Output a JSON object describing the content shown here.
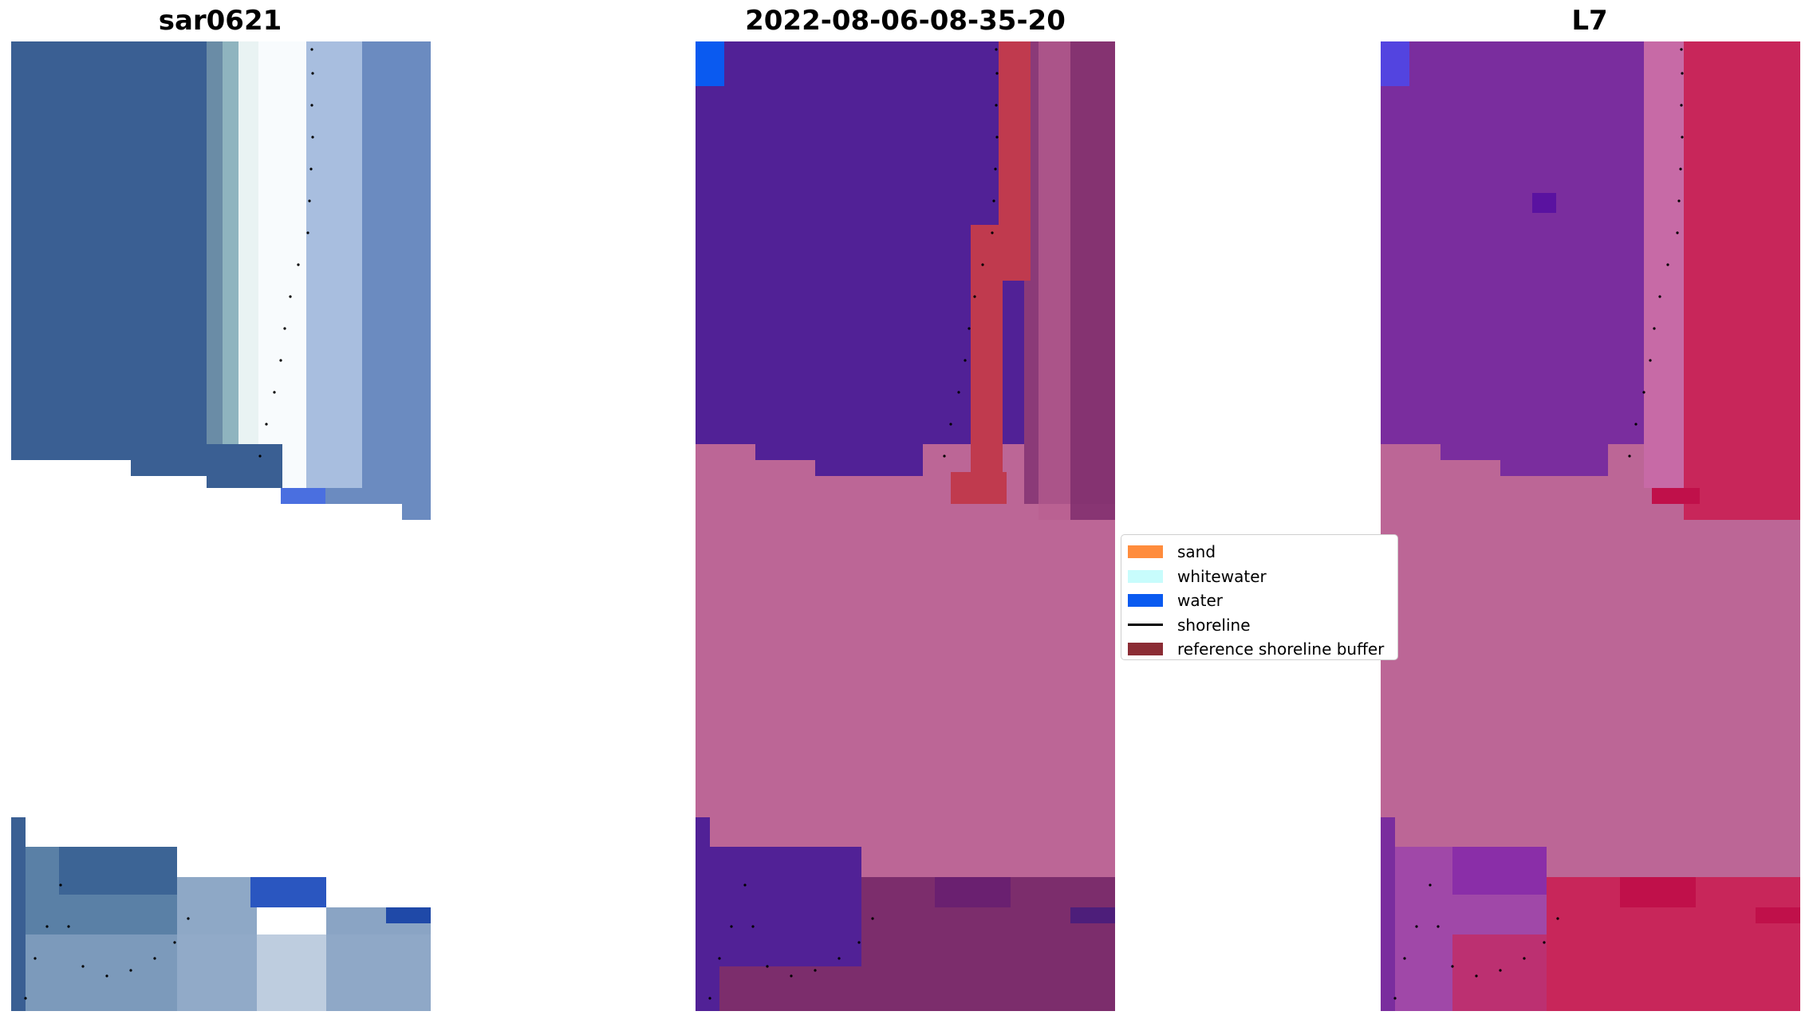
{
  "titles": {
    "panel1": "sar0621",
    "panel2": "2022-08-06-08-35-20",
    "panel3": "L7"
  },
  "legend": {
    "sand": "sand",
    "whitewater": "whitewater",
    "water": "water",
    "shoreline": "shoreline",
    "buffer": "reference shoreline buffer"
  },
  "colors": {
    "sand": "#ff8c3c",
    "whitewater": "#c8fcfc",
    "water": "#0a5af0",
    "shoreline": "#000000",
    "buffer": "#8b2c34",
    "rgb_ocean": "#3a5f93",
    "rgb_foam": "#e8f2f4",
    "class_water": "#512196",
    "class_nodata": "#bc6696",
    "class_buffer": "#c03a4e",
    "index_water": "#7a2d9e",
    "index_land": "#c8265a"
  }
}
